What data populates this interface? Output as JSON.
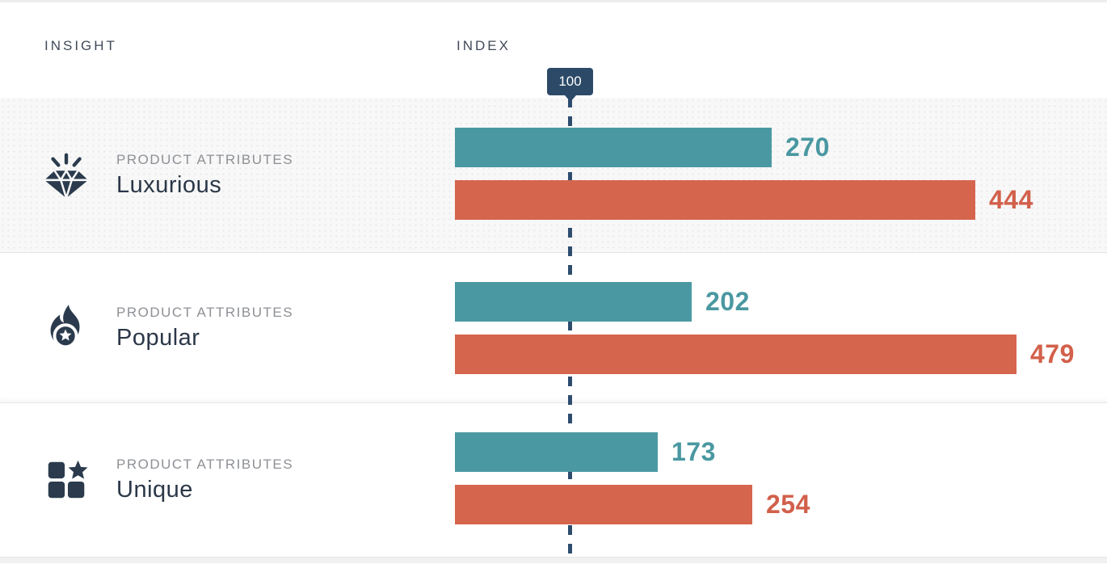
{
  "header": {
    "insight_label": "INSIGHT",
    "index_label": "INDEX"
  },
  "colors": {
    "teal": "#4a99a2",
    "red": "#d6654e",
    "navy": "#2c4a68",
    "icon_navy": "#2b3b4d",
    "group_gray": "#8d9095",
    "name_navy": "#2b3748",
    "row_highlight": "#f8f8f8"
  },
  "chart_data": {
    "type": "bar",
    "orientation": "horizontal",
    "baseline": {
      "label": "100",
      "value": 100
    },
    "x_range": [
      0,
      500
    ],
    "grid": false,
    "legend": "none",
    "series_colors": {
      "teal": "#4a99a2",
      "red": "#d6654e"
    },
    "rows": [
      {
        "icon": "diamond-icon",
        "group": "PRODUCT ATTRIBUTES",
        "label": "Luxurious",
        "values": {
          "teal": 270,
          "red": 444
        }
      },
      {
        "icon": "flame-icon",
        "group": "PRODUCT ATTRIBUTES",
        "label": "Popular",
        "values": {
          "teal": 202,
          "red": 479
        }
      },
      {
        "icon": "grid-star-icon",
        "group": "PRODUCT ATTRIBUTES",
        "label": "Unique",
        "values": {
          "teal": 173,
          "red": 254
        }
      }
    ]
  }
}
